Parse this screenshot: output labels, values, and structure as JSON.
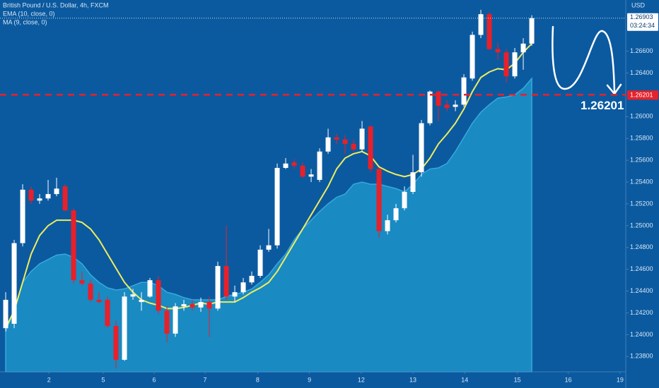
{
  "chart_data": {
    "type": "candlestick",
    "title": "British Pound / U.S. Dollar, 4h, FXCM",
    "x": [
      0,
      1,
      2,
      3,
      4,
      5,
      6,
      7,
      8,
      9,
      10,
      11,
      12,
      13,
      14,
      15,
      16,
      17,
      18,
      19,
      20,
      21,
      22,
      23,
      24,
      25,
      26,
      27,
      28,
      29,
      30,
      31,
      32,
      33,
      34,
      35,
      36,
      37,
      38,
      39,
      40,
      41,
      42,
      43,
      44,
      45,
      46,
      47,
      48,
      49,
      50,
      51,
      52,
      53,
      54,
      55,
      56,
      57,
      58,
      59,
      60,
      61,
      62
    ],
    "open": [
      1.2406,
      1.241,
      1.2484,
      1.2533,
      1.2523,
      1.2525,
      1.2529,
      1.2536,
      1.2514,
      1.245,
      1.2447,
      1.2432,
      1.2432,
      1.2408,
      1.2377,
      1.2435,
      1.243,
      1.2435,
      1.245,
      1.2422,
      1.2401,
      1.2426,
      1.2428,
      1.2425,
      1.243,
      1.2424,
      1.2463,
      1.2435,
      1.2439,
      1.2448,
      1.2454,
      1.2478,
      1.2482,
      1.2553,
      1.2558,
      1.2555,
      1.2545,
      1.2542,
      1.2568,
      1.2581,
      1.2579,
      1.2575,
      1.257,
      1.2591,
      1.2552,
      1.2495,
      1.2505,
      1.2516,
      1.2531,
      1.2549,
      1.2594,
      1.2623,
      1.2611,
      1.2609,
      1.2611,
      1.2635,
      1.2675,
      1.2694,
      1.2662,
      1.2659,
      1.2637,
      1.2659,
      1.2667
    ],
    "high": [
      1.2439,
      1.2487,
      1.2538,
      1.2536,
      1.2529,
      1.2542,
      1.2544,
      1.2538,
      1.2516,
      1.2458,
      1.245,
      1.2439,
      1.2435,
      1.2413,
      1.2439,
      1.2442,
      1.2439,
      1.2452,
      1.2454,
      1.2426,
      1.2429,
      1.2432,
      1.2432,
      1.2434,
      1.2435,
      1.2467,
      1.25,
      1.2445,
      1.2452,
      1.2458,
      1.2482,
      1.2497,
      1.2557,
      1.2562,
      1.2561,
      1.2558,
      1.2552,
      1.2571,
      1.2589,
      1.2584,
      1.2583,
      1.2579,
      1.2596,
      1.2592,
      1.2553,
      1.251,
      1.252,
      1.2536,
      1.2565,
      1.2597,
      1.2624,
      1.2624,
      1.2615,
      1.2615,
      1.2639,
      1.2678,
      1.2698,
      1.2696,
      1.2668,
      1.2662,
      1.2663,
      1.2672,
      1.2693
    ],
    "low": [
      1.2403,
      1.2406,
      1.2481,
      1.252,
      1.252,
      1.2523,
      1.2527,
      1.2513,
      1.2447,
      1.2445,
      1.243,
      1.2429,
      1.2406,
      1.2369,
      1.2376,
      1.2432,
      1.2422,
      1.2434,
      1.2419,
      1.2393,
      1.2398,
      1.2422,
      1.2422,
      1.2421,
      1.2398,
      1.2422,
      1.2432,
      1.243,
      1.2437,
      1.2446,
      1.2452,
      1.2476,
      1.2479,
      1.2552,
      1.2552,
      1.2544,
      1.254,
      1.254,
      1.2566,
      1.2575,
      1.2566,
      1.2568,
      1.2568,
      1.2549,
      1.2489,
      1.2492,
      1.2503,
      1.2514,
      1.2529,
      1.2545,
      1.2592,
      1.2596,
      1.2605,
      1.2605,
      1.2609,
      1.2633,
      1.2672,
      1.2661,
      1.2652,
      1.2631,
      1.2635,
      1.2643,
      1.2665
    ],
    "close": [
      1.2432,
      1.2484,
      1.2533,
      1.2523,
      1.2525,
      1.2529,
      1.2534,
      1.2514,
      1.245,
      1.2447,
      1.2432,
      1.243,
      1.2408,
      1.2377,
      1.2435,
      1.2437,
      1.2432,
      1.245,
      1.2422,
      1.2401,
      1.2426,
      1.2428,
      1.2425,
      1.243,
      1.2424,
      1.2463,
      1.2435,
      1.2439,
      1.2448,
      1.2454,
      1.2478,
      1.2482,
      1.2553,
      1.2557,
      1.2555,
      1.2545,
      1.2547,
      1.2568,
      1.2581,
      1.2579,
      1.2575,
      1.257,
      1.2589,
      1.2552,
      1.2495,
      1.2505,
      1.2516,
      1.2531,
      1.2549,
      1.2594,
      1.2623,
      1.261,
      1.2608,
      1.2611,
      1.2636,
      1.2675,
      1.2694,
      1.2662,
      1.2659,
      1.2637,
      1.2659,
      1.2667,
      1.26903
    ],
    "up_color": "#ffffff",
    "down_color": "#e8202a",
    "series": [
      {
        "name": "EMA (10, close, 0)",
        "type": "line",
        "color": "#f0ec5c",
        "values": [
          1.2406,
          1.2422,
          1.2448,
          1.2474,
          1.2491,
          1.25,
          1.2505,
          1.2505,
          1.2505,
          1.2503,
          1.2497,
          1.2487,
          1.2474,
          1.2461,
          1.2448,
          1.2439,
          1.2432,
          1.2429,
          1.2427,
          1.2424,
          1.2424,
          1.2425,
          1.2427,
          1.2429,
          1.2428,
          1.243,
          1.243,
          1.243,
          1.2434,
          1.2439,
          1.2443,
          1.2448,
          1.2458,
          1.2471,
          1.2484,
          1.2497,
          1.251,
          1.2523,
          1.2536,
          1.2552,
          1.2562,
          1.2566,
          1.2568,
          1.2564,
          1.2554,
          1.255,
          1.2547,
          1.2545,
          1.2547,
          1.2552,
          1.2562,
          1.2575,
          1.2584,
          1.2594,
          1.2607,
          1.2623,
          1.2636,
          1.2641,
          1.2644,
          1.2643,
          1.2649,
          1.2659,
          1.2667
        ]
      },
      {
        "name": "MA (9, close, 0)",
        "type": "area",
        "color": "#1b8fc5",
        "values": [
          1.2403,
          1.2422,
          1.2448,
          1.2458,
          1.2465,
          1.2469,
          1.2473,
          1.2474,
          1.2471,
          1.2465,
          1.2455,
          1.2448,
          1.2443,
          1.2441,
          1.2442,
          1.2445,
          1.2448,
          1.2448,
          1.2445,
          1.2439,
          1.2437,
          1.2434,
          1.2432,
          1.2432,
          1.2432,
          1.2432,
          1.2435,
          1.2437,
          1.2439,
          1.2442,
          1.2448,
          1.2455,
          1.2465,
          1.2474,
          1.2487,
          1.2497,
          1.2505,
          1.2513,
          1.252,
          1.2526,
          1.2529,
          1.2538,
          1.254,
          1.2538,
          1.2538,
          1.2536,
          1.2534,
          1.2531,
          1.2538,
          1.2547,
          1.2552,
          1.2553,
          1.2557,
          1.2568,
          1.2581,
          1.2594,
          1.2604,
          1.2611,
          1.2617,
          1.2618,
          1.262,
          1.2626,
          1.2635
        ]
      }
    ],
    "xlim": [
      -0.67,
      73.08
    ],
    "xticks": [
      {
        "value": 5.1,
        "label": "2"
      },
      {
        "value": 11.5,
        "label": "5"
      },
      {
        "value": 17.5,
        "label": "6"
      },
      {
        "value": 23.5,
        "label": "7"
      },
      {
        "value": 29.7,
        "label": "8"
      },
      {
        "value": 35.8,
        "label": "9"
      },
      {
        "value": 41.9,
        "label": "12"
      },
      {
        "value": 48,
        "label": "13"
      },
      {
        "value": 54.1,
        "label": "14"
      },
      {
        "value": 60.3,
        "label": "15"
      },
      {
        "value": 66.3,
        "label": "16"
      },
      {
        "value": 72.4,
        "label": "19"
      }
    ],
    "ylim": [
      1.2366,
      1.2707
    ],
    "yticks": [
      {
        "value": 1.238,
        "label": "1.23800"
      },
      {
        "value": 1.24,
        "label": "1.24000"
      },
      {
        "value": 1.242,
        "label": "1.24200"
      },
      {
        "value": 1.244,
        "label": "1.24400"
      },
      {
        "value": 1.246,
        "label": "1.24600"
      },
      {
        "value": 1.248,
        "label": "1.24800"
      },
      {
        "value": 1.25,
        "label": "1.25000"
      },
      {
        "value": 1.252,
        "label": "1.25200"
      },
      {
        "value": 1.254,
        "label": "1.25400"
      },
      {
        "value": 1.256,
        "label": "1.25600"
      },
      {
        "value": 1.258,
        "label": "1.25800"
      },
      {
        "value": 1.26,
        "label": "1.26000"
      },
      {
        "value": 1.264,
        "label": "1.26400"
      },
      {
        "value": 1.266,
        "label": "1.26600"
      }
    ],
    "grid": false,
    "y_axis_label": "USD",
    "current_price": 1.26903,
    "countdown": "03:24:34",
    "level": {
      "value": 1.26201,
      "color": "#e8202a"
    }
  }
}
